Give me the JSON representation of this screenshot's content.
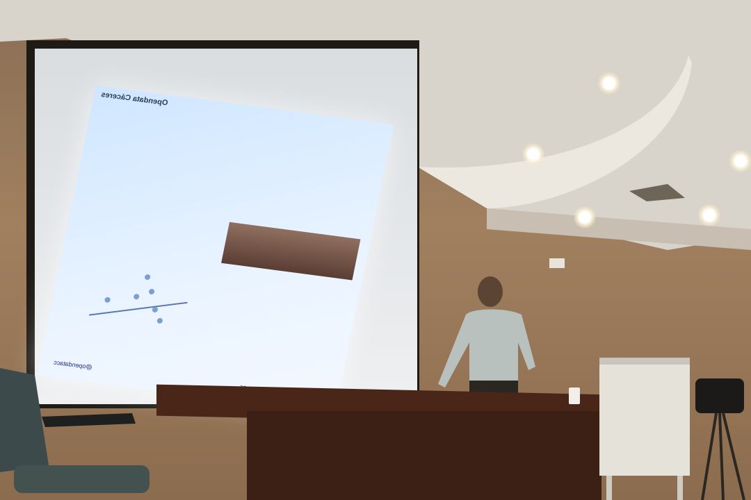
{
  "scene": {
    "description_tags": [
      "conference-room",
      "projector-screen",
      "presenter",
      "desk",
      "flipchart",
      "chair",
      "ceiling-lights"
    ]
  },
  "slide": {
    "header_text": "Opendata Cáceres",
    "url_right": "http://opendata.caceres.es",
    "url_left": "@opendatacc"
  },
  "colors": {
    "wall": "#a0805f",
    "ceiling": "#d8d4cc",
    "slide_bg": "#eaf4ff",
    "desk": "#4a2618"
  }
}
